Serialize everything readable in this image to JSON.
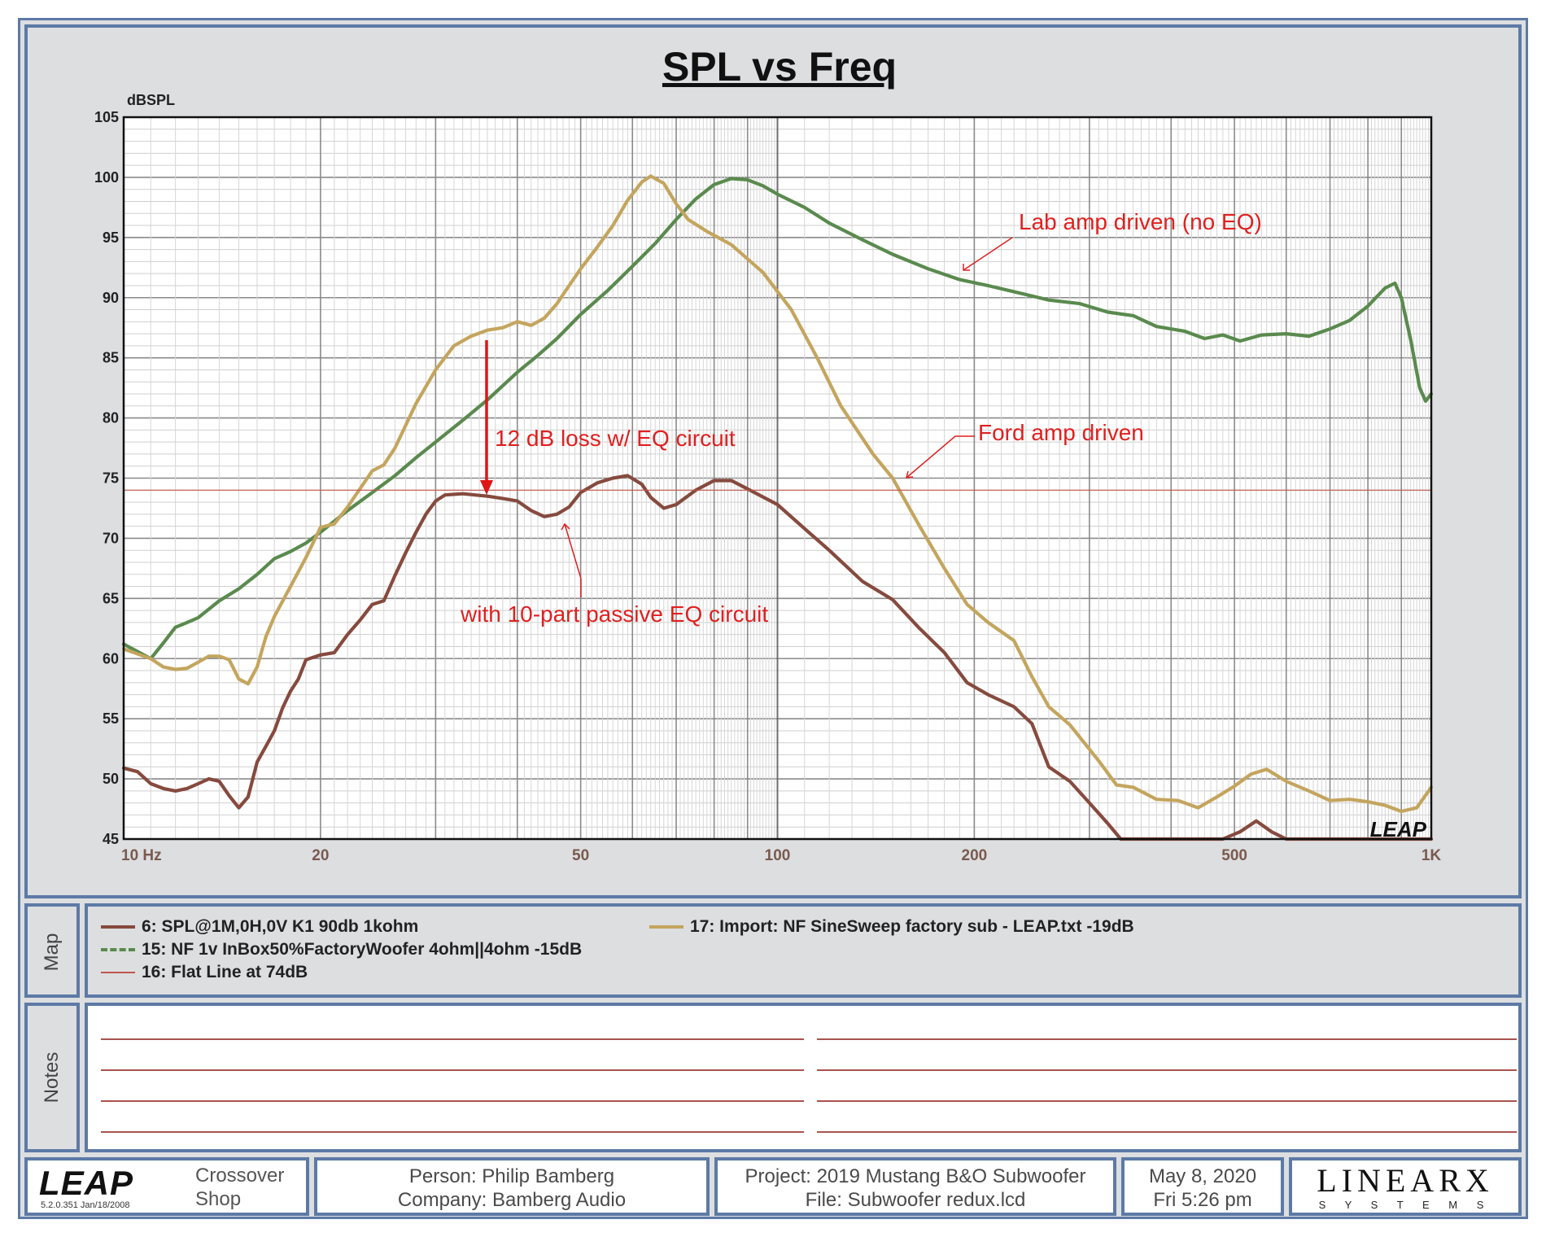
{
  "chart_data": {
    "type": "line",
    "title": "SPL vs Freq",
    "ylabel": "dBSPL",
    "x_scale": "log",
    "xlim": [
      10,
      1000
    ],
    "ylim": [
      45,
      105
    ],
    "x_ticks": [
      {
        "value": 10,
        "label": "10  Hz"
      },
      {
        "value": 20,
        "label": "20"
      },
      {
        "value": 50,
        "label": "50"
      },
      {
        "value": 100,
        "label": "100"
      },
      {
        "value": 200,
        "label": "200"
      },
      {
        "value": 500,
        "label": "500"
      },
      {
        "value": 1000,
        "label": "1K"
      }
    ],
    "y_ticks": [
      105,
      100,
      95,
      90,
      85,
      80,
      75,
      70,
      65,
      60,
      55,
      50,
      45
    ],
    "grid": true,
    "series": [
      {
        "name": "15: NF 1v InBox50%FactoryWoofer 4ohm||4ohm -15dB",
        "color": "#5a8a4e",
        "points": [
          [
            10,
            61.2
          ],
          [
            11,
            60.0
          ],
          [
            11.5,
            61.3
          ],
          [
            12,
            62.6
          ],
          [
            12.5,
            63.0
          ],
          [
            13,
            63.4
          ],
          [
            14,
            64.8
          ],
          [
            15,
            65.8
          ],
          [
            16,
            67.0
          ],
          [
            17,
            68.3
          ],
          [
            18,
            68.9
          ],
          [
            19,
            69.6
          ],
          [
            20,
            70.5
          ],
          [
            22,
            72.3
          ],
          [
            24,
            73.8
          ],
          [
            26,
            75.2
          ],
          [
            28,
            76.7
          ],
          [
            30,
            78.0
          ],
          [
            33,
            79.8
          ],
          [
            36,
            81.5
          ],
          [
            40,
            83.8
          ],
          [
            43,
            85.2
          ],
          [
            46,
            86.6
          ],
          [
            50,
            88.6
          ],
          [
            55,
            90.6
          ],
          [
            60,
            92.6
          ],
          [
            65,
            94.5
          ],
          [
            70,
            96.5
          ],
          [
            75,
            98.2
          ],
          [
            80,
            99.4
          ],
          [
            85,
            99.9
          ],
          [
            90,
            99.8
          ],
          [
            95,
            99.3
          ],
          [
            100,
            98.6
          ],
          [
            110,
            97.5
          ],
          [
            120,
            96.2
          ],
          [
            135,
            94.8
          ],
          [
            150,
            93.6
          ],
          [
            170,
            92.4
          ],
          [
            190,
            91.5
          ],
          [
            210,
            91.0
          ],
          [
            230,
            90.5
          ],
          [
            260,
            89.8
          ],
          [
            290,
            89.5
          ],
          [
            320,
            88.8
          ],
          [
            350,
            88.5
          ],
          [
            380,
            87.6
          ],
          [
            420,
            87.2
          ],
          [
            450,
            86.6
          ],
          [
            480,
            86.9
          ],
          [
            510,
            86.4
          ],
          [
            550,
            86.9
          ],
          [
            600,
            87.0
          ],
          [
            650,
            86.8
          ],
          [
            700,
            87.4
          ],
          [
            750,
            88.1
          ],
          [
            800,
            89.3
          ],
          [
            850,
            90.8
          ],
          [
            880,
            91.2
          ],
          [
            900,
            90.0
          ],
          [
            930,
            86.5
          ],
          [
            960,
            82.5
          ],
          [
            980,
            81.4
          ],
          [
            1000,
            82.0
          ]
        ]
      },
      {
        "name": "17: Import: NF SineSweep factory sub - LEAP.txt -19dB",
        "color": "#c4a55e",
        "points": [
          [
            10,
            60.8
          ],
          [
            11,
            60.0
          ],
          [
            11.5,
            59.3
          ],
          [
            12,
            59.1
          ],
          [
            12.5,
            59.2
          ],
          [
            13,
            59.7
          ],
          [
            13.5,
            60.2
          ],
          [
            14,
            60.2
          ],
          [
            14.5,
            59.9
          ],
          [
            15,
            58.3
          ],
          [
            15.5,
            57.9
          ],
          [
            16,
            59.3
          ],
          [
            16.5,
            61.8
          ],
          [
            17,
            63.5
          ],
          [
            18,
            66.0
          ],
          [
            19,
            68.4
          ],
          [
            20,
            70.9
          ],
          [
            21,
            71.2
          ],
          [
            22,
            72.6
          ],
          [
            24,
            75.6
          ],
          [
            25,
            76.1
          ],
          [
            26,
            77.5
          ],
          [
            28,
            81.2
          ],
          [
            30,
            84.0
          ],
          [
            32,
            86.0
          ],
          [
            34,
            86.8
          ],
          [
            36,
            87.3
          ],
          [
            38,
            87.5
          ],
          [
            40,
            88.0
          ],
          [
            42,
            87.7
          ],
          [
            44,
            88.3
          ],
          [
            46,
            89.5
          ],
          [
            48,
            91.0
          ],
          [
            50,
            92.4
          ],
          [
            53,
            94.2
          ],
          [
            56,
            96.0
          ],
          [
            59,
            98.1
          ],
          [
            62,
            99.6
          ],
          [
            64,
            100.1
          ],
          [
            67,
            99.5
          ],
          [
            70,
            97.8
          ],
          [
            73,
            96.5
          ],
          [
            78,
            95.5
          ],
          [
            85,
            94.4
          ],
          [
            95,
            92.1
          ],
          [
            105,
            89.0
          ],
          [
            115,
            85.0
          ],
          [
            125,
            81.0
          ],
          [
            140,
            77.0
          ],
          [
            150,
            75.0
          ],
          [
            165,
            71.0
          ],
          [
            180,
            67.5
          ],
          [
            195,
            64.5
          ],
          [
            210,
            63.0
          ],
          [
            230,
            61.5
          ],
          [
            245,
            58.5
          ],
          [
            260,
            56.0
          ],
          [
            280,
            54.5
          ],
          [
            310,
            51.5
          ],
          [
            330,
            49.5
          ],
          [
            350,
            49.3
          ],
          [
            380,
            48.3
          ],
          [
            410,
            48.2
          ],
          [
            440,
            47.6
          ],
          [
            470,
            48.5
          ],
          [
            500,
            49.4
          ],
          [
            530,
            50.4
          ],
          [
            560,
            50.8
          ],
          [
            600,
            49.8
          ],
          [
            650,
            49.0
          ],
          [
            700,
            48.2
          ],
          [
            750,
            48.3
          ],
          [
            800,
            48.1
          ],
          [
            850,
            47.8
          ],
          [
            900,
            47.3
          ],
          [
            950,
            47.6
          ],
          [
            1000,
            49.3
          ]
        ]
      },
      {
        "name": "6: SPL@1M,0H,0V K1 90db 1kohm",
        "color": "#864a3e",
        "points": [
          [
            10,
            50.9
          ],
          [
            10.5,
            50.6
          ],
          [
            11,
            49.6
          ],
          [
            11.5,
            49.2
          ],
          [
            12,
            49.0
          ],
          [
            12.5,
            49.2
          ],
          [
            13,
            49.6
          ],
          [
            13.5,
            50.0
          ],
          [
            14,
            49.8
          ],
          [
            14.5,
            48.6
          ],
          [
            15,
            47.6
          ],
          [
            15.5,
            48.5
          ],
          [
            16,
            51.4
          ],
          [
            16.5,
            52.7
          ],
          [
            17,
            54.0
          ],
          [
            17.5,
            55.9
          ],
          [
            18,
            57.3
          ],
          [
            18.5,
            58.3
          ],
          [
            19,
            59.9
          ],
          [
            20,
            60.3
          ],
          [
            21,
            60.5
          ],
          [
            22,
            62.0
          ],
          [
            23,
            63.2
          ],
          [
            24,
            64.5
          ],
          [
            25,
            64.8
          ],
          [
            26,
            66.9
          ],
          [
            27,
            68.8
          ],
          [
            28,
            70.5
          ],
          [
            29,
            72.0
          ],
          [
            30,
            73.1
          ],
          [
            31,
            73.6
          ],
          [
            33,
            73.7
          ],
          [
            36,
            73.5
          ],
          [
            38,
            73.3
          ],
          [
            40,
            73.1
          ],
          [
            42,
            72.3
          ],
          [
            44,
            71.8
          ],
          [
            46,
            72.0
          ],
          [
            48,
            72.6
          ],
          [
            50,
            73.8
          ],
          [
            53,
            74.6
          ],
          [
            56,
            75.0
          ],
          [
            59,
            75.2
          ],
          [
            62,
            74.5
          ],
          [
            64,
            73.4
          ],
          [
            67,
            72.5
          ],
          [
            70,
            72.8
          ],
          [
            75,
            74.0
          ],
          [
            80,
            74.8
          ],
          [
            85,
            74.8
          ],
          [
            90,
            74.1
          ],
          [
            100,
            72.8
          ],
          [
            110,
            70.8
          ],
          [
            120,
            69.0
          ],
          [
            135,
            66.4
          ],
          [
            150,
            64.9
          ],
          [
            165,
            62.5
          ],
          [
            180,
            60.5
          ],
          [
            195,
            58.0
          ],
          [
            210,
            57.0
          ],
          [
            230,
            56.0
          ],
          [
            245,
            54.6
          ],
          [
            260,
            51.0
          ],
          [
            280,
            49.8
          ],
          [
            300,
            48.0
          ],
          [
            320,
            46.3
          ],
          [
            335,
            45.0
          ],
          [
            450,
            45.0
          ],
          [
            480,
            45.0
          ],
          [
            510,
            45.6
          ],
          [
            540,
            46.5
          ],
          [
            570,
            45.6
          ],
          [
            600,
            45.0
          ],
          [
            1000,
            45.0
          ]
        ]
      },
      {
        "name": "16: Flat Line at 74dB",
        "color": "#c0564c",
        "points": [
          [
            10,
            74
          ],
          [
            1000,
            74
          ]
        ]
      }
    ],
    "annotations": [
      {
        "text": "Lab amp driven (no EQ)",
        "color": "#e02020"
      },
      {
        "text": "12 dB loss w/ EQ circuit",
        "color": "#e02020"
      },
      {
        "text": "Ford amp driven",
        "color": "#e02020"
      },
      {
        "text": "with 10-part passive EQ circuit",
        "color": "#e02020"
      }
    ]
  },
  "legend": {
    "tab_label": "Map",
    "items": [
      {
        "label": "6: SPL@1M,0H,0V K1 90db 1kohm",
        "color": "#864a3e"
      },
      {
        "label": "15: NF 1v InBox50%FactoryWoofer 4ohm||4ohm -15dB",
        "color": "#5a8a4e"
      },
      {
        "label": "16: Flat Line at 74dB",
        "color": "#c0564c"
      },
      {
        "label": "17: Import: NF SineSweep factory sub - LEAP.txt -19dB",
        "color": "#c4a55e"
      }
    ]
  },
  "notes": {
    "tab_label": "Notes"
  },
  "watermark": "LEAP",
  "footer": {
    "logo": "LEAP",
    "version": "5.2.0.351   Jan/18/2008",
    "product_line1": "Crossover",
    "product_line2": "Shop",
    "person": "Person: Philip Bamberg",
    "company": "Company: Bamberg Audio",
    "project": "Project: 2019 Mustang B&O Subwoofer",
    "file": "File: Subwoofer redux.lcd",
    "date": "May  8, 2020",
    "time": "Fri  5:26 pm",
    "brand": "LINEARX",
    "brand_sub": "S Y S T E M S"
  }
}
